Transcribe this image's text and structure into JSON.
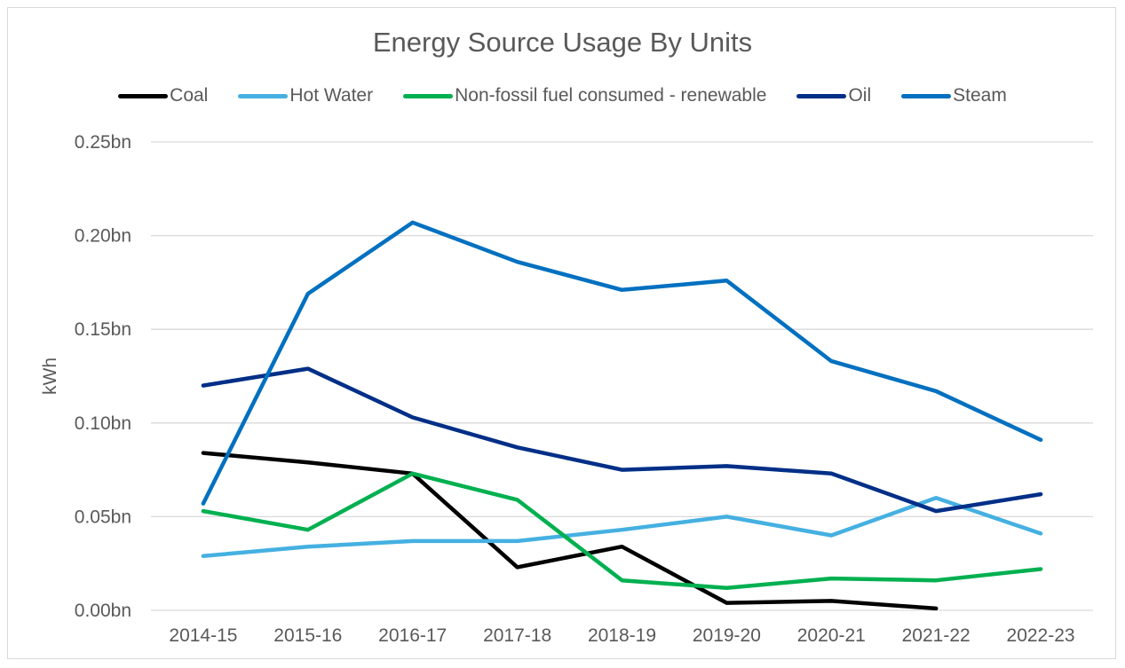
{
  "chart_data": {
    "type": "line",
    "title": "Energy Source Usage By Units",
    "xlabel": "",
    "ylabel": "kWh",
    "categories": [
      "2014-15",
      "2015-16",
      "2016-17",
      "2017-18",
      "2018-19",
      "2019-20",
      "2020-21",
      "2021-22",
      "2022-23"
    ],
    "ylim": [
      0,
      0.25
    ],
    "y_ticks": [
      0,
      0.05,
      0.1,
      0.15,
      0.2,
      0.25
    ],
    "y_tick_labels": [
      "0.00bn",
      "0.05bn",
      "0.10bn",
      "0.15bn",
      "0.20bn",
      "0.25bn"
    ],
    "grid": "horizontal",
    "legend_position": "top",
    "unit": "bn",
    "series": [
      {
        "name": "Coal",
        "color": "#000000",
        "values": [
          0.084,
          0.079,
          0.073,
          0.023,
          0.034,
          0.004,
          0.005,
          0.001,
          null
        ]
      },
      {
        "name": "Hot Water",
        "color": "#45b0e1",
        "values": [
          0.029,
          0.034,
          0.037,
          0.037,
          0.043,
          0.05,
          0.04,
          0.06,
          0.041
        ]
      },
      {
        "name": "Non-fossil fuel consumed - renewable",
        "color": "#00b050",
        "values": [
          0.053,
          0.043,
          0.073,
          0.059,
          0.016,
          0.012,
          0.017,
          0.016,
          0.022
        ]
      },
      {
        "name": "Oil",
        "color": "#002f87",
        "values": [
          0.12,
          0.129,
          0.103,
          0.087,
          0.075,
          0.077,
          0.073,
          0.053,
          0.062
        ]
      },
      {
        "name": "Steam",
        "color": "#0070c0",
        "values": [
          0.057,
          0.169,
          0.207,
          0.186,
          0.171,
          0.176,
          0.133,
          0.117,
          0.091
        ]
      }
    ]
  }
}
